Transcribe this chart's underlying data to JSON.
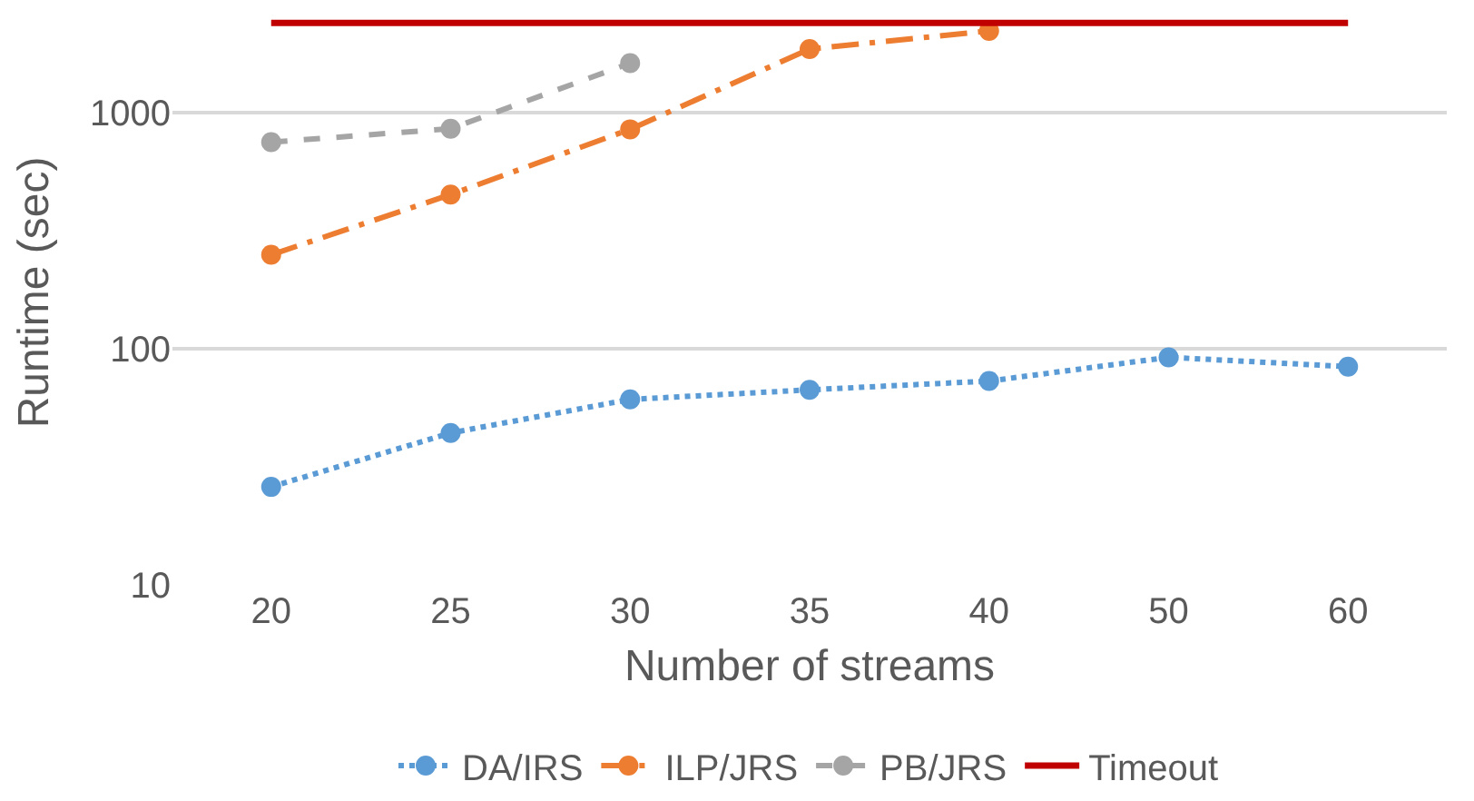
{
  "chart_data": {
    "type": "line",
    "xlabel": "Number of streams",
    "ylabel": "Runtime (sec)",
    "categories": [
      "20",
      "25",
      "30",
      "35",
      "40",
      "50",
      "60"
    ],
    "log": "y",
    "ylim": [
      10,
      3000
    ],
    "yticks": [
      10,
      100,
      1000
    ],
    "grid": "y",
    "legend": "bottom",
    "series": [
      {
        "name": "DA/IRS",
        "color": "#5b9bd5",
        "line_style": "dotted",
        "marker": "circle",
        "values": [
          26,
          44,
          61,
          67,
          73,
          92,
          84
        ]
      },
      {
        "name": "ILP/JRS",
        "color": "#ed7d31",
        "line_style": "dashdot",
        "marker": "circle",
        "values": [
          250,
          450,
          850,
          1860,
          2220,
          null,
          null
        ]
      },
      {
        "name": "PB/JRS",
        "color": "#a5a5a5",
        "line_style": "dashed",
        "marker": "circle",
        "values": [
          750,
          855,
          1620,
          null,
          null,
          null,
          null
        ]
      },
      {
        "name": "Timeout",
        "color": "#c00000",
        "line_style": "solid",
        "marker": "none",
        "values": [
          2400,
          2400,
          2400,
          2400,
          2400,
          2400,
          2400
        ]
      }
    ]
  }
}
